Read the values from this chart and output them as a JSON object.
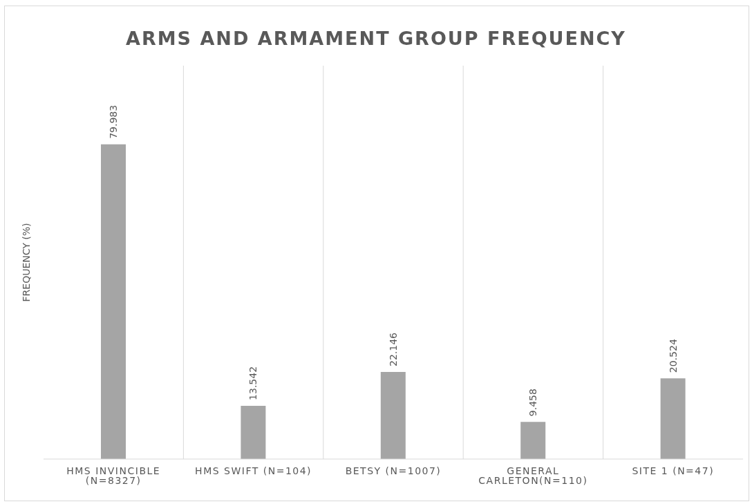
{
  "chart_data": {
    "type": "bar",
    "title": "ARMS AND ARMAMENT GROUP FREQUENCY",
    "ylabel": "FREQUENCY (%)",
    "categories": [
      "HMS INVINCIBLE (N=8327)",
      "HMS SWIFT (N=104)",
      "BETSY (N=1007)",
      "GENERAL CARLETON(N=110)",
      "SITE 1 (N=47)"
    ],
    "values": [
      79.983,
      13.542,
      22.146,
      9.458,
      20.524
    ],
    "color": "#a5a5a5",
    "data_labels": true,
    "grid": "x",
    "tick_labels": "x"
  }
}
